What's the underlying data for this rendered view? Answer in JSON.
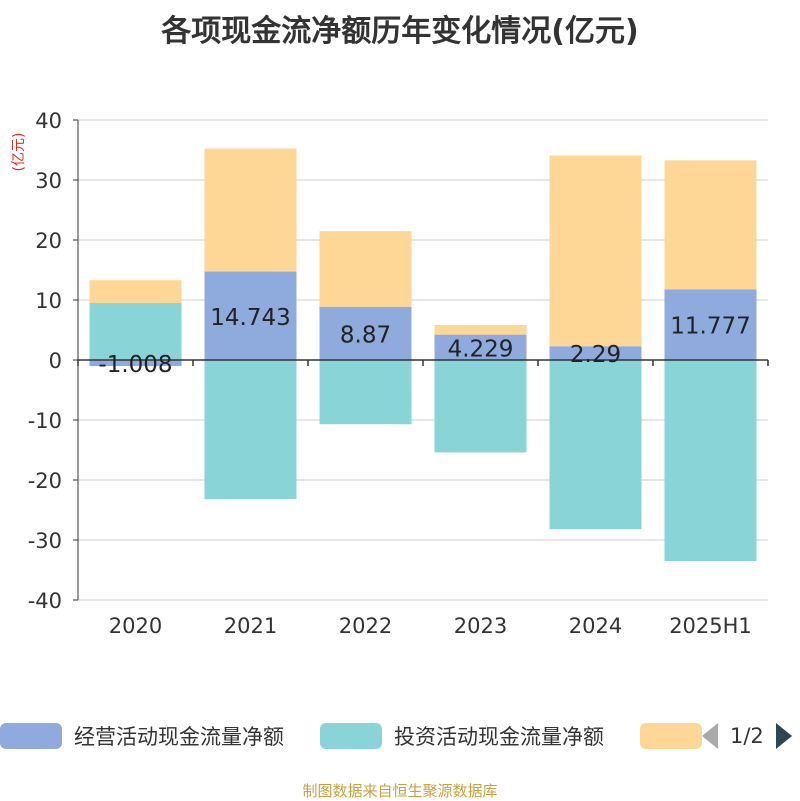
{
  "title": "各项现金流净额历年变化情况(亿元)",
  "yunit": "(亿元)",
  "chart_data": {
    "type": "bar",
    "stacked": true,
    "categories": [
      "2020",
      "2021",
      "2022",
      "2023",
      "2024",
      "2025H1"
    ],
    "ylim": [
      -40,
      40
    ],
    "yticks": [
      40,
      30,
      20,
      10,
      0,
      -10,
      -20,
      -30,
      -40
    ],
    "grid": true,
    "legend_position": "bottom",
    "series": [
      {
        "name": "经营活动现金流量净额",
        "color": "#8faadc",
        "values": [
          -1.008,
          14.743,
          8.87,
          4.229,
          2.29,
          11.777
        ],
        "labels": [
          "-1.008",
          "14.743",
          "8.87",
          "4.229",
          "2.29",
          "11.777"
        ]
      },
      {
        "name": "投资活动现金流量净额",
        "color": "#88d4d6",
        "values": [
          9.5,
          -23.2,
          -10.7,
          -15.4,
          -28.2,
          -33.5
        ]
      },
      {
        "name": "",
        "color": "#fed797",
        "values": [
          3.8,
          20.5,
          12.6,
          1.6,
          31.8,
          21.5
        ]
      }
    ]
  },
  "legend": {
    "items": [
      {
        "label": "经营活动现金流量净额",
        "color": "#8faadc"
      },
      {
        "label": "投资活动现金流量净额",
        "color": "#88d4d6"
      },
      {
        "label": "",
        "color": "#fed797"
      }
    ],
    "page": "1/2"
  },
  "source": "制图数据来自恒生聚源数据库"
}
